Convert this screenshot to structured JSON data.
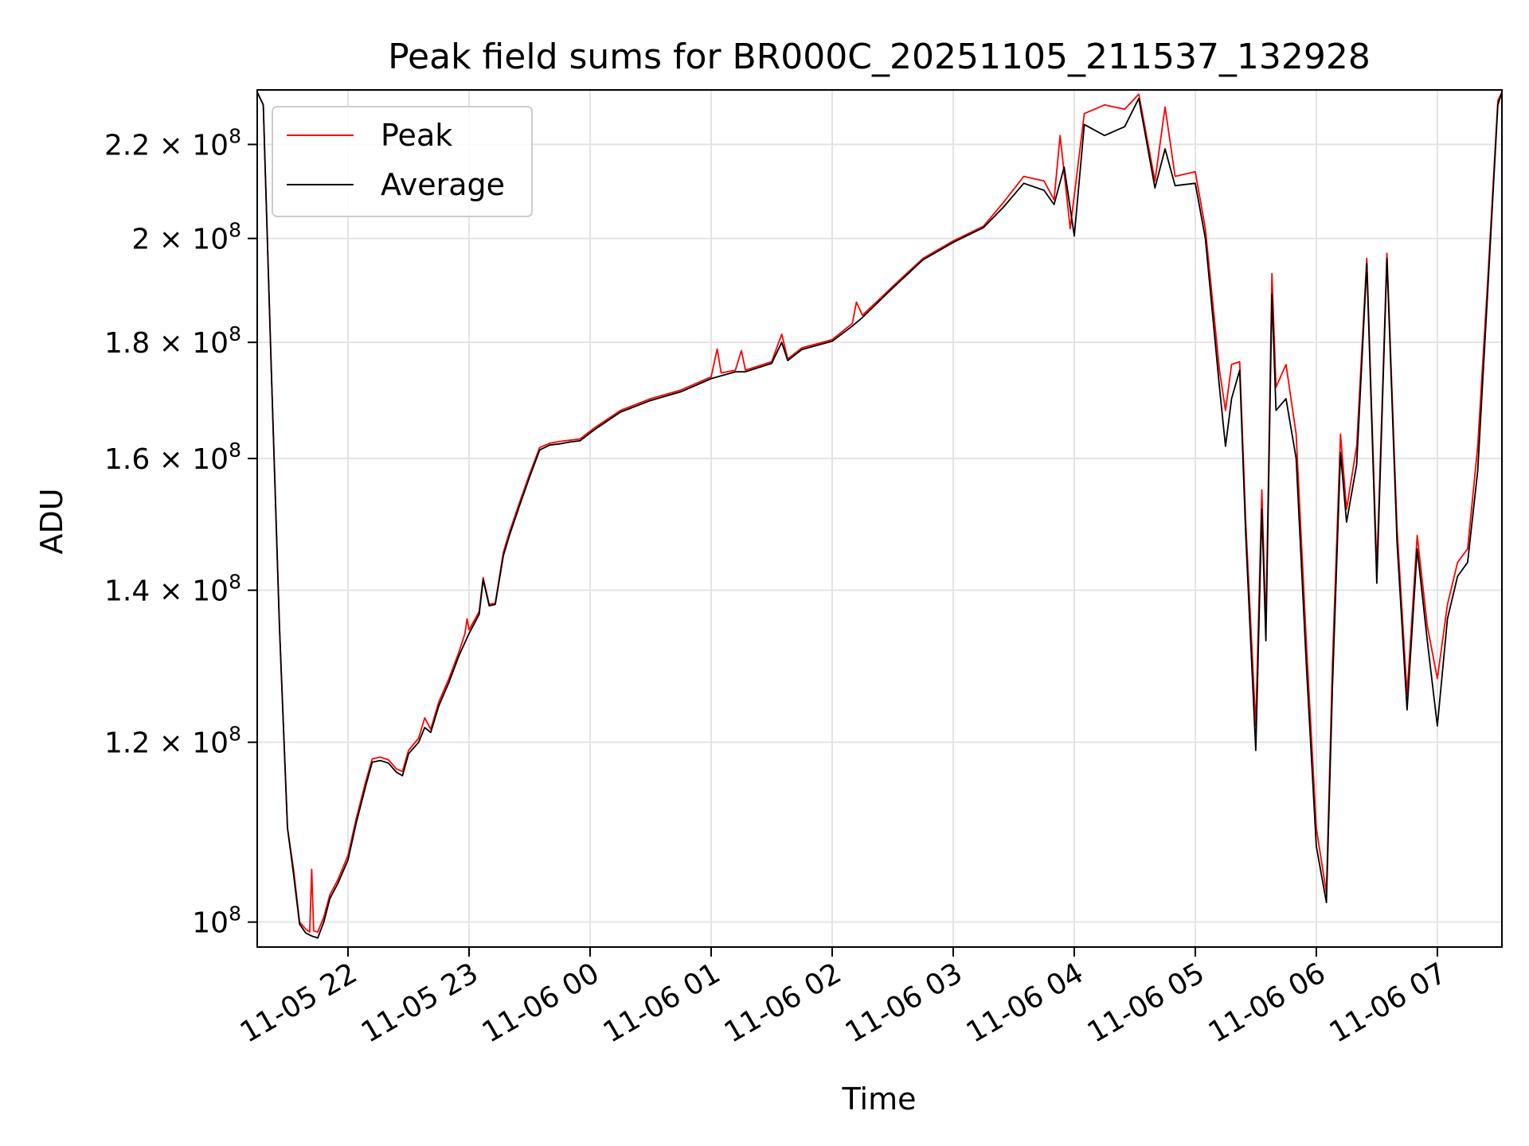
{
  "chart_data": {
    "type": "line",
    "title": "Peak field sums for BR000C_20251105_211537_132928",
    "xlabel": "Time",
    "ylabel": "ADU",
    "yscale": "log",
    "grid": true,
    "legend_position": "upper-left",
    "xlim": [
      "2025-11-05 21:15",
      "2025-11-06 07:32"
    ],
    "ylim": [
      97500000,
      232500000
    ],
    "x_ticks": [
      {
        "t": "2025-11-05 22:00",
        "label": "11-05 22"
      },
      {
        "t": "2025-11-05 23:00",
        "label": "11-05 23"
      },
      {
        "t": "2025-11-06 00:00",
        "label": "11-06 00"
      },
      {
        "t": "2025-11-06 01:00",
        "label": "11-06 01"
      },
      {
        "t": "2025-11-06 02:00",
        "label": "11-06 02"
      },
      {
        "t": "2025-11-06 03:00",
        "label": "11-06 03"
      },
      {
        "t": "2025-11-06 04:00",
        "label": "11-06 04"
      },
      {
        "t": "2025-11-06 05:00",
        "label": "11-06 05"
      },
      {
        "t": "2025-11-06 06:00",
        "label": "11-06 06"
      },
      {
        "t": "2025-11-06 07:00",
        "label": "11-06 07"
      }
    ],
    "y_ticks": [
      {
        "v": 100000000,
        "mant": "10",
        "exp": "8"
      },
      {
        "v": 120000000,
        "mant": "1.2 × 10",
        "exp": "8"
      },
      {
        "v": 140000000,
        "mant": "1.4 × 10",
        "exp": "8"
      },
      {
        "v": 160000000,
        "mant": "1.6 × 10",
        "exp": "8"
      },
      {
        "v": 180000000,
        "mant": "1.8 × 10",
        "exp": "8"
      },
      {
        "v": 200000000,
        "mant": "2 × 10",
        "exp": "8"
      },
      {
        "v": 220000000,
        "mant": "2.2 × 10",
        "exp": "8"
      }
    ],
    "series": [
      {
        "name": "Peak",
        "color": "#ff0000",
        "points": [
          [
            "2025-11-05 21:15",
            232000000
          ],
          [
            "2025-11-05 21:18",
            229000000
          ],
          [
            "2025-11-05 21:22",
            175000000
          ],
          [
            "2025-11-05 21:26",
            135000000
          ],
          [
            "2025-11-05 21:30",
            110000000
          ],
          [
            "2025-11-05 21:33",
            105500000
          ],
          [
            "2025-11-05 21:36",
            100000000
          ],
          [
            "2025-11-05 21:39",
            99300000
          ],
          [
            "2025-11-05 21:41",
            99000000
          ],
          [
            "2025-11-05 21:42",
            105500000
          ],
          [
            "2025-11-05 21:43",
            99100000
          ],
          [
            "2025-11-05 21:45",
            99000000
          ],
          [
            "2025-11-05 21:48",
            100500000
          ],
          [
            "2025-11-05 21:51",
            102800000
          ],
          [
            "2025-11-05 21:55",
            104400000
          ],
          [
            "2025-11-05 22:00",
            107000000
          ],
          [
            "2025-11-05 22:04",
            111000000
          ],
          [
            "2025-11-05 22:09",
            115500000
          ],
          [
            "2025-11-05 22:12",
            118000000
          ],
          [
            "2025-11-05 22:16",
            118200000
          ],
          [
            "2025-11-05 22:20",
            117900000
          ],
          [
            "2025-11-05 22:24",
            116800000
          ],
          [
            "2025-11-05 22:27",
            116500000
          ],
          [
            "2025-11-05 22:30",
            119000000
          ],
          [
            "2025-11-05 22:35",
            120500000
          ],
          [
            "2025-11-05 22:38",
            123000000
          ],
          [
            "2025-11-05 22:41",
            121600000
          ],
          [
            "2025-11-05 22:45",
            125000000
          ],
          [
            "2025-11-05 22:50",
            128000000
          ],
          [
            "2025-11-05 22:55",
            131500000
          ],
          [
            "2025-11-05 22:58",
            134000000
          ],
          [
            "2025-11-05 22:59",
            136000000
          ],
          [
            "2025-11-05 23:00",
            134500000
          ],
          [
            "2025-11-05 23:05",
            137000000
          ],
          [
            "2025-11-05 23:07",
            141800000
          ],
          [
            "2025-11-05 23:10",
            138000000
          ],
          [
            "2025-11-05 23:13",
            138200000
          ],
          [
            "2025-11-05 23:17",
            145500000
          ],
          [
            "2025-11-05 23:20",
            148500000
          ],
          [
            "2025-11-05 23:25",
            153000000
          ],
          [
            "2025-11-05 23:30",
            157500000
          ],
          [
            "2025-11-05 23:35",
            161800000
          ],
          [
            "2025-11-05 23:40",
            162500000
          ],
          [
            "2025-11-05 23:45",
            162800000
          ],
          [
            "2025-11-05 23:50",
            163000000
          ],
          [
            "2025-11-05 23:55",
            163200000
          ],
          [
            "2025-11-06 00:02",
            165000000
          ],
          [
            "2025-11-06 00:15",
            168000000
          ],
          [
            "2025-11-06 00:30",
            170000000
          ],
          [
            "2025-11-06 00:45",
            171500000
          ],
          [
            "2025-11-06 01:00",
            173800000
          ],
          [
            "2025-11-06 01:03",
            178800000
          ],
          [
            "2025-11-06 01:05",
            174500000
          ],
          [
            "2025-11-06 01:12",
            175000000
          ],
          [
            "2025-11-06 01:15",
            178500000
          ],
          [
            "2025-11-06 01:17",
            175000000
          ],
          [
            "2025-11-06 01:30",
            176500000
          ],
          [
            "2025-11-06 01:35",
            181500000
          ],
          [
            "2025-11-06 01:38",
            177000000
          ],
          [
            "2025-11-06 01:45",
            179000000
          ],
          [
            "2025-11-06 02:00",
            180500000
          ],
          [
            "2025-11-06 02:10",
            183500000
          ],
          [
            "2025-11-06 02:12",
            187500000
          ],
          [
            "2025-11-06 02:15",
            185000000
          ],
          [
            "2025-11-06 02:30",
            190500000
          ],
          [
            "2025-11-06 02:45",
            196000000
          ],
          [
            "2025-11-06 03:00",
            199500000
          ],
          [
            "2025-11-06 03:15",
            202500000
          ],
          [
            "2025-11-06 03:25",
            207500000
          ],
          [
            "2025-11-06 03:35",
            213000000
          ],
          [
            "2025-11-06 03:45",
            212000000
          ],
          [
            "2025-11-06 03:50",
            208000000
          ],
          [
            "2025-11-06 03:53",
            222000000
          ],
          [
            "2025-11-06 03:58",
            202000000
          ],
          [
            "2025-11-06 04:05",
            227000000
          ],
          [
            "2025-11-06 04:15",
            229000000
          ],
          [
            "2025-11-06 04:25",
            228000000
          ],
          [
            "2025-11-06 04:32",
            231500000
          ],
          [
            "2025-11-06 04:40",
            212000000
          ],
          [
            "2025-11-06 04:45",
            228500000
          ],
          [
            "2025-11-06 04:50",
            213000000
          ],
          [
            "2025-11-06 05:00",
            214000000
          ],
          [
            "2025-11-06 05:05",
            202000000
          ],
          [
            "2025-11-06 05:12",
            175000000
          ],
          [
            "2025-11-06 05:15",
            168000000
          ],
          [
            "2025-11-06 05:18",
            176000000
          ],
          [
            "2025-11-06 05:22",
            176500000
          ],
          [
            "2025-11-06 05:25",
            150000000
          ],
          [
            "2025-11-06 05:30",
            122000000
          ],
          [
            "2025-11-06 05:33",
            155000000
          ],
          [
            "2025-11-06 05:35",
            135000000
          ],
          [
            "2025-11-06 05:38",
            193000000
          ],
          [
            "2025-11-06 05:40",
            172000000
          ],
          [
            "2025-11-06 05:45",
            176000000
          ],
          [
            "2025-11-06 05:50",
            164000000
          ],
          [
            "2025-11-06 05:55",
            133000000
          ],
          [
            "2025-11-06 06:00",
            110000000
          ],
          [
            "2025-11-06 06:05",
            103000000
          ],
          [
            "2025-11-06 06:08",
            130000000
          ],
          [
            "2025-11-06 06:12",
            164000000
          ],
          [
            "2025-11-06 06:15",
            152000000
          ],
          [
            "2025-11-06 06:20",
            162000000
          ],
          [
            "2025-11-06 06:25",
            196000000
          ],
          [
            "2025-11-06 06:30",
            143000000
          ],
          [
            "2025-11-06 06:35",
            197000000
          ],
          [
            "2025-11-06 06:40",
            149000000
          ],
          [
            "2025-11-06 06:45",
            126000000
          ],
          [
            "2025-11-06 06:50",
            148000000
          ],
          [
            "2025-11-06 06:55",
            135000000
          ],
          [
            "2025-11-06 07:00",
            128000000
          ],
          [
            "2025-11-06 07:05",
            138000000
          ],
          [
            "2025-11-06 07:10",
            144000000
          ],
          [
            "2025-11-06 07:15",
            146000000
          ],
          [
            "2025-11-06 07:20",
            162000000
          ],
          [
            "2025-11-06 07:25",
            192000000
          ],
          [
            "2025-11-06 07:30",
            230000000
          ],
          [
            "2025-11-06 07:32",
            232000000
          ]
        ]
      },
      {
        "name": "Average",
        "color": "#000000",
        "points": [
          [
            "2025-11-05 21:15",
            232000000
          ],
          [
            "2025-11-05 21:18",
            229000000
          ],
          [
            "2025-11-05 21:22",
            175000000
          ],
          [
            "2025-11-05 21:26",
            135000000
          ],
          [
            "2025-11-05 21:30",
            110000000
          ],
          [
            "2025-11-05 21:33",
            105000000
          ],
          [
            "2025-11-05 21:36",
            99800000
          ],
          [
            "2025-11-05 21:39",
            98900000
          ],
          [
            "2025-11-05 21:42",
            98600000
          ],
          [
            "2025-11-05 21:45",
            98400000
          ],
          [
            "2025-11-05 21:48",
            100000000
          ],
          [
            "2025-11-05 21:51",
            102400000
          ],
          [
            "2025-11-05 21:55",
            104000000
          ],
          [
            "2025-11-05 22:00",
            106500000
          ],
          [
            "2025-11-05 22:04",
            110500000
          ],
          [
            "2025-11-05 22:09",
            115000000
          ],
          [
            "2025-11-05 22:12",
            117600000
          ],
          [
            "2025-11-05 22:16",
            117800000
          ],
          [
            "2025-11-05 22:20",
            117500000
          ],
          [
            "2025-11-05 22:24",
            116400000
          ],
          [
            "2025-11-05 22:27",
            116000000
          ],
          [
            "2025-11-05 22:30",
            118600000
          ],
          [
            "2025-11-05 22:35",
            120000000
          ],
          [
            "2025-11-05 22:38",
            121800000
          ],
          [
            "2025-11-05 22:41",
            121200000
          ],
          [
            "2025-11-05 22:45",
            124500000
          ],
          [
            "2025-11-05 22:50",
            127500000
          ],
          [
            "2025-11-05 22:55",
            131000000
          ],
          [
            "2025-11-05 23:00",
            134000000
          ],
          [
            "2025-11-05 23:05",
            136600000
          ],
          [
            "2025-11-05 23:07",
            141500000
          ],
          [
            "2025-11-05 23:10",
            137800000
          ],
          [
            "2025-11-05 23:13",
            138000000
          ],
          [
            "2025-11-05 23:17",
            145000000
          ],
          [
            "2025-11-05 23:20",
            148000000
          ],
          [
            "2025-11-05 23:25",
            152500000
          ],
          [
            "2025-11-05 23:30",
            157000000
          ],
          [
            "2025-11-05 23:35",
            161400000
          ],
          [
            "2025-11-05 23:40",
            162200000
          ],
          [
            "2025-11-05 23:45",
            162400000
          ],
          [
            "2025-11-05 23:50",
            162700000
          ],
          [
            "2025-11-05 23:55",
            162900000
          ],
          [
            "2025-11-06 00:02",
            164700000
          ],
          [
            "2025-11-06 00:15",
            167700000
          ],
          [
            "2025-11-06 00:30",
            169700000
          ],
          [
            "2025-11-06 00:45",
            171200000
          ],
          [
            "2025-11-06 01:00",
            173500000
          ],
          [
            "2025-11-06 01:12",
            174700000
          ],
          [
            "2025-11-06 01:17",
            174700000
          ],
          [
            "2025-11-06 01:30",
            176200000
          ],
          [
            "2025-11-06 01:35",
            180000000
          ],
          [
            "2025-11-06 01:38",
            176700000
          ],
          [
            "2025-11-06 01:45",
            178700000
          ],
          [
            "2025-11-06 02:00",
            180200000
          ],
          [
            "2025-11-06 02:10",
            183000000
          ],
          [
            "2025-11-06 02:15",
            184600000
          ],
          [
            "2025-11-06 02:30",
            190200000
          ],
          [
            "2025-11-06 02:45",
            195700000
          ],
          [
            "2025-11-06 03:00",
            199200000
          ],
          [
            "2025-11-06 03:15",
            202200000
          ],
          [
            "2025-11-06 03:25",
            206500000
          ],
          [
            "2025-11-06 03:35",
            211500000
          ],
          [
            "2025-11-06 03:45",
            210000000
          ],
          [
            "2025-11-06 03:50",
            207000000
          ],
          [
            "2025-11-06 03:55",
            215000000
          ],
          [
            "2025-11-06 04:00",
            200500000
          ],
          [
            "2025-11-06 04:05",
            224500000
          ],
          [
            "2025-11-06 04:15",
            222000000
          ],
          [
            "2025-11-06 04:25",
            224000000
          ],
          [
            "2025-11-06 04:32",
            230500000
          ],
          [
            "2025-11-06 04:40",
            210500000
          ],
          [
            "2025-11-06 04:45",
            219000000
          ],
          [
            "2025-11-06 04:50",
            211000000
          ],
          [
            "2025-11-06 05:00",
            211500000
          ],
          [
            "2025-11-06 05:05",
            200000000
          ],
          [
            "2025-11-06 05:12",
            172000000
          ],
          [
            "2025-11-06 05:15",
            162000000
          ],
          [
            "2025-11-06 05:18",
            170000000
          ],
          [
            "2025-11-06 05:22",
            175000000
          ],
          [
            "2025-11-06 05:25",
            148000000
          ],
          [
            "2025-11-06 05:30",
            119000000
          ],
          [
            "2025-11-06 05:33",
            152000000
          ],
          [
            "2025-11-06 05:35",
            133000000
          ],
          [
            "2025-11-06 05:38",
            189000000
          ],
          [
            "2025-11-06 05:40",
            168000000
          ],
          [
            "2025-11-06 05:45",
            170000000
          ],
          [
            "2025-11-06 05:50",
            160000000
          ],
          [
            "2025-11-06 05:55",
            130000000
          ],
          [
            "2025-11-06 06:00",
            108000000
          ],
          [
            "2025-11-06 06:05",
            102000000
          ],
          [
            "2025-11-06 06:08",
            127000000
          ],
          [
            "2025-11-06 06:12",
            161000000
          ],
          [
            "2025-11-06 06:15",
            150000000
          ],
          [
            "2025-11-06 06:20",
            159000000
          ],
          [
            "2025-11-06 06:25",
            195000000
          ],
          [
            "2025-11-06 06:30",
            141000000
          ],
          [
            "2025-11-06 06:35",
            196000000
          ],
          [
            "2025-11-06 06:40",
            147000000
          ],
          [
            "2025-11-06 06:45",
            124000000
          ],
          [
            "2025-11-06 06:50",
            146000000
          ],
          [
            "2025-11-06 06:55",
            133000000
          ],
          [
            "2025-11-06 07:00",
            122000000
          ],
          [
            "2025-11-06 07:05",
            136000000
          ],
          [
            "2025-11-06 07:10",
            142000000
          ],
          [
            "2025-11-06 07:15",
            144000000
          ],
          [
            "2025-11-06 07:20",
            158000000
          ],
          [
            "2025-11-06 07:25",
            190000000
          ],
          [
            "2025-11-06 07:30",
            229000000
          ],
          [
            "2025-11-06 07:32",
            232000000
          ]
        ]
      }
    ]
  }
}
